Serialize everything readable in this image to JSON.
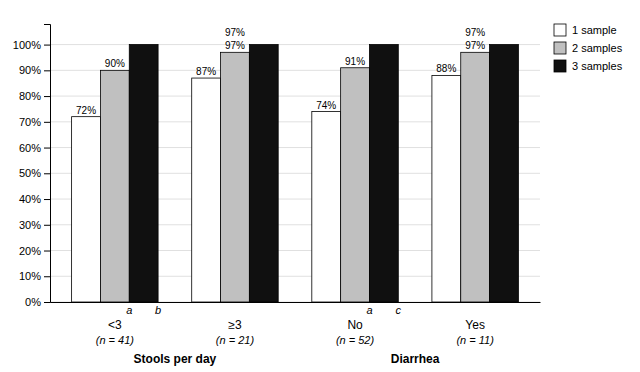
{
  "chart_data": {
    "type": "bar",
    "categories": [
      "<3",
      "≥3",
      "No",
      "Yes"
    ],
    "category_notes": [
      "(n = 41)",
      "(n = 21)",
      "(n = 52)",
      "(n = 11)"
    ],
    "category_groups": [
      {
        "label": "Stools per day",
        "categories": [
          "<3",
          "≥3"
        ]
      },
      {
        "label": "Diarrhea",
        "categories": [
          "No",
          "Yes"
        ]
      }
    ],
    "series": [
      {
        "name": "1 sample",
        "color": "#ffffff",
        "values": [
          72,
          87,
          74,
          88
        ],
        "value_labels": [
          "72%",
          "87%",
          "74%",
          "88%"
        ],
        "data_labels": true
      },
      {
        "name": "2 samples",
        "color": "#c0c0c0",
        "values": [
          90,
          97,
          91,
          97
        ],
        "value_labels": [
          "90%",
          "97%",
          "91%",
          "97%"
        ],
        "data_labels": true
      },
      {
        "name": "3 samples",
        "color": "#101010",
        "values": [
          100,
          100,
          100,
          100
        ]
      }
    ],
    "annotations": [
      {
        "text": "a",
        "category": "<3",
        "series": "2 samples",
        "position": "below"
      },
      {
        "text": "b",
        "category": "<3",
        "series": "3 samples",
        "position": "below"
      },
      {
        "text": "97%",
        "category": "≥3",
        "position": "top"
      },
      {
        "text": "a",
        "category": "No",
        "series": "2 samples",
        "position": "below"
      },
      {
        "text": "c",
        "category": "No",
        "series": "3 samples",
        "position": "below"
      },
      {
        "text": "97%",
        "category": "Yes",
        "position": "top"
      }
    ],
    "ylim": [
      0,
      108
    ],
    "yticks": [
      {
        "value": 0,
        "label": "0%"
      },
      {
        "value": 10,
        "label": "10%"
      },
      {
        "value": 20,
        "label": "20%"
      },
      {
        "value": 30,
        "label": "30%"
      },
      {
        "value": 40,
        "label": "40%"
      },
      {
        "value": 50,
        "label": "50%"
      },
      {
        "value": 60,
        "label": "60%"
      },
      {
        "value": 70,
        "label": "70%"
      },
      {
        "value": 80,
        "label": "80%"
      },
      {
        "value": 90,
        "label": "90%"
      },
      {
        "value": 100,
        "label": "100%"
      }
    ],
    "grid": true,
    "legend": "top-right"
  }
}
